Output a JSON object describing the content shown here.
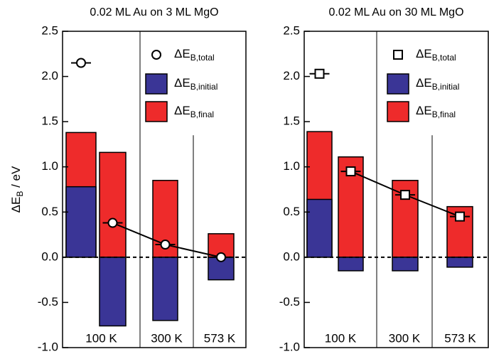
{
  "chart_data": [
    {
      "type": "bar",
      "title": "0.02 ML Au on 3 ML MgO",
      "ylabel": {
        "main": "ΔE",
        "sub": "B",
        "rest": " / eV"
      },
      "categories": [
        "100 K",
        null,
        "300 K",
        "573 K"
      ],
      "ylim": [
        -1.0,
        2.5
      ],
      "yticks": [
        {
          "value": -1.0,
          "label": "-1.0"
        },
        -0.5,
        {
          "value": 0.0,
          "label": "0.0"
        },
        0.5,
        {
          "value": 1.0,
          "label": "1.0"
        },
        1.5,
        {
          "value": 2.0,
          "label": "2.0"
        },
        2.5
      ],
      "series": [
        {
          "name": "ΔE",
          "subscript": "B,final",
          "color": "#ee2b2b",
          "kind": "bar",
          "values": [
            1.38,
            1.16,
            0.85,
            0.26
          ]
        },
        {
          "name": "ΔE",
          "subscript": "B,initial",
          "color": "#3a3596",
          "kind": "bar",
          "values": [
            0.78,
            -0.76,
            -0.7,
            -0.25
          ]
        },
        {
          "name": "ΔE",
          "subscript": "B,total",
          "color": "#ffffff",
          "kind": "circle",
          "values": [
            2.15,
            0.38,
            0.14,
            0.0
          ]
        }
      ]
    },
    {
      "type": "bar",
      "title": "0.02 ML Au on 30 ML MgO",
      "categories": [
        "100 K",
        null,
        "300 K",
        "573 K"
      ],
      "ylim": [
        -1.0,
        2.5
      ],
      "yticks": [
        {
          "value": -1.0,
          "label": "-1.0"
        },
        -0.5,
        {
          "value": 0.0,
          "label": "0.0"
        },
        0.5,
        {
          "value": 1.0,
          "label": "1.0"
        },
        1.5,
        {
          "value": 2.0,
          "label": "2.0"
        },
        2.5
      ],
      "series": [
        {
          "name": "ΔE",
          "subscript": "B,final",
          "color": "#ee2b2b",
          "kind": "bar",
          "values": [
            1.39,
            1.11,
            0.85,
            0.56
          ]
        },
        {
          "name": "ΔE",
          "subscript": "B,initial",
          "color": "#3a3596",
          "kind": "bar",
          "values": [
            0.64,
            -0.15,
            -0.15,
            -0.11
          ]
        },
        {
          "name": "ΔE",
          "subscript": "B,total",
          "color": "#ffffff",
          "kind": "square",
          "values": [
            2.03,
            0.95,
            0.69,
            0.45
          ]
        }
      ]
    }
  ]
}
